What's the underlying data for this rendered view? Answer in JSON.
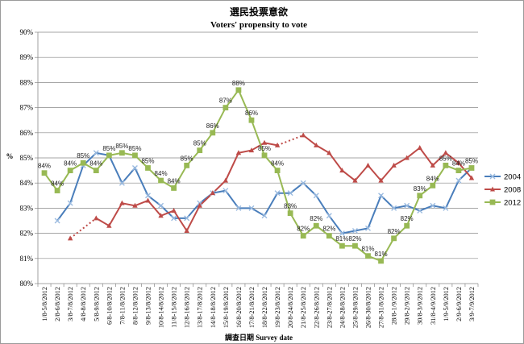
{
  "chart_data": {
    "type": "line",
    "title": "選民投票意欲",
    "subtitle": "Voters' propensity to vote",
    "ylabel": "%",
    "xlabel": "調查日期 Survey date",
    "ylim": [
      80,
      90
    ],
    "y_ticks": [
      "80%",
      "81%",
      "82%",
      "83%",
      "84%",
      "85%",
      "86%",
      "87%",
      "88%",
      "89%",
      "90%"
    ],
    "grid": true,
    "legend_position": "right",
    "categories": [
      "1/8-5/8/2012",
      "2/8-6/8/2012",
      "3/8-7/8/2012",
      "4/8-8/8/2012",
      "5/8-9/8/2012",
      "6/8-10/8/2012",
      "7/8-11/8/2012",
      "8/8-12/8/2012",
      "9/8-13/8/2012",
      "10/8-14/8/2012",
      "11/8-15/8/2012",
      "12/8-16/8/2012",
      "13/8-17/8/2012",
      "14/8-18/8/2012",
      "15/8-19/8/2012",
      "16/8-20/8/2012",
      "17/8-21/8/2012",
      "18/8-22/8/2012",
      "19/8-23/8/2012",
      "20/8-24/8/2012",
      "21/8-25/8/2012",
      "22/8-26/8/2012",
      "23/8-27/8/2012",
      "24/8-28/8/2012",
      "25/8-29/8/2012",
      "26/8-30/8/2012",
      "27/8-31/8/2012",
      "28/8-1/9/2012",
      "29/8-2/9/2012",
      "30/8-3/9/2012",
      "31/8-4/9/2012",
      "1/9-5/9/2012",
      "2/9-6/9/2012",
      "3/9-7/9/2012"
    ],
    "series": [
      {
        "name": "2004",
        "color": "#4a7ebb",
        "marker": "x",
        "values": [
          null,
          82.5,
          83.2,
          84.7,
          85.2,
          85.1,
          84.0,
          84.6,
          83.5,
          83.1,
          82.6,
          82.6,
          83.2,
          83.6,
          83.7,
          83.0,
          83.0,
          82.7,
          83.6,
          83.6,
          84.0,
          83.5,
          82.7,
          82.0,
          82.1,
          82.2,
          83.5,
          83.0,
          83.1,
          82.9,
          83.1,
          83.0,
          84.1,
          84.6
        ]
      },
      {
        "name": "2008",
        "color": "#be4b48",
        "marker": "triangle",
        "dotted_segments": [
          [
            2,
            4
          ],
          [
            18,
            20
          ]
        ],
        "values": [
          null,
          null,
          81.8,
          null,
          82.6,
          82.3,
          83.2,
          83.1,
          83.3,
          82.7,
          82.9,
          82.1,
          83.1,
          83.6,
          84.1,
          85.2,
          85.3,
          85.6,
          85.5,
          null,
          85.9,
          85.5,
          85.2,
          84.5,
          84.1,
          84.7,
          84.1,
          84.7,
          85.0,
          85.4,
          84.7,
          85.2,
          84.8,
          84.2
        ]
      },
      {
        "name": "2012",
        "color": "#98b954",
        "marker": "square",
        "labels": [
          "84%",
          "84%",
          "84%",
          "85%",
          "84%",
          "85%",
          "85%",
          "85%",
          "85%",
          "84%",
          "84%",
          "85%",
          "85%",
          "86%",
          "87%",
          "88%",
          "86%",
          "85%",
          "84%",
          "83%",
          "82%",
          "82%",
          "82%",
          "81%",
          "82%",
          "81%",
          "81%",
          "82%",
          "82%",
          "83%",
          "84%",
          "85%",
          "84%",
          "85%"
        ],
        "values": [
          84.4,
          83.7,
          84.5,
          84.8,
          84.5,
          85.1,
          85.2,
          85.1,
          84.6,
          84.1,
          83.8,
          84.7,
          85.3,
          86.0,
          87.0,
          87.7,
          86.5,
          85.1,
          84.5,
          82.8,
          81.9,
          82.3,
          81.9,
          81.5,
          81.5,
          81.1,
          80.9,
          81.8,
          82.3,
          83.5,
          83.9,
          84.7,
          84.5,
          84.6
        ]
      }
    ]
  }
}
